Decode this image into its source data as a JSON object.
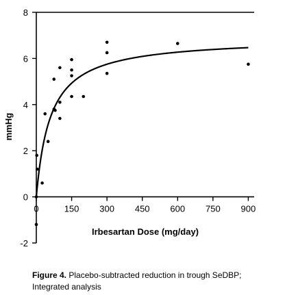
{
  "chart_data": {
    "type": "scatter",
    "xlabel": "Irbesartan Dose (mg/day)",
    "ylabel": "mmHg",
    "xlim": [
      0,
      925
    ],
    "ylim": [
      -2,
      8
    ],
    "xticks": [
      0,
      150,
      300,
      450,
      600,
      750,
      900
    ],
    "yticks": [
      -2,
      0,
      2,
      4,
      6,
      8
    ],
    "grid": false,
    "points": [
      {
        "x": 0,
        "y": -1.2
      },
      {
        "x": 0,
        "y": 0.0
      },
      {
        "x": 2,
        "y": 1.8
      },
      {
        "x": 4,
        "y": 1.2
      },
      {
        "x": 25,
        "y": 0.6
      },
      {
        "x": 37,
        "y": 3.6
      },
      {
        "x": 50,
        "y": 2.4
      },
      {
        "x": 75,
        "y": 5.1
      },
      {
        "x": 75,
        "y": 3.8
      },
      {
        "x": 80,
        "y": 3.75
      },
      {
        "x": 100,
        "y": 5.6
      },
      {
        "x": 100,
        "y": 4.1
      },
      {
        "x": 100,
        "y": 3.4
      },
      {
        "x": 150,
        "y": 5.95
      },
      {
        "x": 150,
        "y": 5.5
      },
      {
        "x": 150,
        "y": 5.25
      },
      {
        "x": 150,
        "y": 4.35
      },
      {
        "x": 200,
        "y": 4.35
      },
      {
        "x": 300,
        "y": 6.7
      },
      {
        "x": 300,
        "y": 6.25
      },
      {
        "x": 300,
        "y": 5.35
      },
      {
        "x": 600,
        "y": 6.65
      },
      {
        "x": 900,
        "y": 5.75
      }
    ],
    "fit_curve": {
      "type": "emax",
      "emax": 6.9,
      "ed50": 60
    }
  },
  "caption": {
    "label": "Figure 4.",
    "text": " Placebo-subtracted reduction in trough SeDBP; Integrated analysis"
  }
}
